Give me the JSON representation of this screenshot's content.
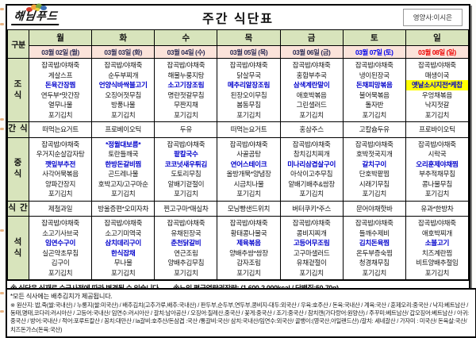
{
  "header": {
    "logo_text": "해님푸드",
    "title": "주간 식단표",
    "nutritionist": "영양사:이시은"
  },
  "colors": {
    "header_green": "#d8e4bc",
    "date_pink": "#fbe3da",
    "special_blue": "#0000cc",
    "saturday_blue": "#0000ee",
    "sunday_red": "#ee0000",
    "highlight_yellow": "#ffff00"
  },
  "table": {
    "corner_label": "구분",
    "days": [
      "월",
      "화",
      "수",
      "목",
      "금",
      "토",
      "일"
    ],
    "dates": [
      "03월 02일 (월)",
      "03월 03일 (화)",
      "03월 04일 (수)",
      "03월 05일 (목)",
      "03월 06일 (금)",
      "03월 07일 (토)",
      "03월 08일 (일)"
    ],
    "meals": [
      {
        "key": "breakfast",
        "label": "조식",
        "stacked": true,
        "cells": [
          [
            "잡곡밥/야채죽",
            "게살스프",
            {
              "text": "돈육간장찜",
              "style": "blue"
            },
            "연두부*맛간장",
            "열무나물",
            "포기김치"
          ],
          [
            "잡곡밥/야채죽",
            "순두부찌개",
            {
              "text": "언양식바싹불고기",
              "style": "blue"
            },
            "오징어젓무침",
            "방풍나물",
            "포기김치"
          ],
          [
            "잡곡밥/야채죽",
            "해물누룽지탕",
            {
              "text": "소고기장조림",
              "style": "blue"
            },
            "명란젓갈무침",
            "무짠지채",
            "포기김치"
          ],
          [
            "잡곡밥/야채죽",
            "닭살무국",
            {
              "text": "메추리알장조림",
              "style": "blue"
            },
            "된장오이무침",
            "봄동무침",
            "포기김치"
          ],
          [
            "잡곡밥/야채죽",
            "홍합부추국",
            {
              "text": "삼색계란말이",
              "style": "blue"
            },
            "애호박볶음",
            "그린샐러드",
            "포기김치"
          ],
          [
            "잡곡밥/야채죽",
            "냉이된장국",
            {
              "text": "돈채피망볶음",
              "style": "blue"
            },
            "불어묵볶음",
            "돌자반",
            "포기김치"
          ],
          [
            "잡곡밥/야채죽",
            "매생이국",
            {
              "text": "옛날소시지전*케찹",
              "style": "highlight"
            },
            "우엉채볶음",
            "낙지젓갈",
            "포기김치"
          ]
        ]
      },
      {
        "key": "snack-am",
        "label": "간 식",
        "stacked": false,
        "cells": [
          [
            "떠먹는요거트"
          ],
          [
            "프로베이오틱"
          ],
          [
            "두유"
          ],
          [
            "떠먹는요거트"
          ],
          [
            "홍삼주스"
          ],
          [
            "고칼슘두유"
          ],
          [
            "프로바이오틱"
          ]
        ]
      },
      {
        "key": "lunch",
        "label": "중식",
        "stacked": true,
        "cells": [
          [
            "잡곡밥/야채죽",
            "우거지순살감자탕",
            {
              "text": "깻잎부추전",
              "style": "blue"
            },
            "사각어묵볶음",
            "양파간장지",
            "포기김치"
          ],
          [
            {
              "text": "*정월대보름*",
              "style": "blue"
            },
            "토란들깨국",
            {
              "text": "한방돈갈비찜",
              "style": "blue"
            },
            "곤드레나물",
            "호박고지/고구마순",
            "포기김치"
          ],
          [
            "잡곡밥/야채죽",
            {
              "text": "팥칼국수",
              "style": "blue"
            },
            {
              "text": "코코넛새우튀김",
              "style": "blue"
            },
            "도토리무침",
            "알배기겉절이",
            "포기김치"
          ],
          [
            "잡곡밥/야채죽",
            "사골곰탕",
            {
              "text": "연어스테이크",
              "style": "blue"
            },
            "올방개묵*양념장",
            "시금치나물",
            "포기김치"
          ],
          [
            "잡곡밥/야채죽",
            "참치김치찌개",
            {
              "text": "미나리삼겹살구이",
              "style": "blue"
            },
            "아삭이고추무침",
            "알배기배추&쌈장",
            "포기김치"
          ],
          [
            "잡곡밥/야채죽",
            "호박젓국지개",
            {
              "text": "갈치구이",
              "style": "blue"
            },
            "단호박팥찜",
            "시래기무침",
            "포기김치"
          ],
          [
            "잡곡밥/야채죽",
            "시락국",
            {
              "text": "오리훈제야채찜",
              "style": "blue"
            },
            "부추적채무침",
            "콩나물무침",
            "포기김치"
          ]
        ]
      },
      {
        "key": "snack-pm",
        "label": "식 간",
        "stacked": false,
        "cells": [
          [
            "제철과일"
          ],
          [
            "방울증편*오미자차"
          ],
          [
            "찐고구마*매실차"
          ],
          [
            "모닝빵샌드위치"
          ],
          [
            "버터쿠키*주스"
          ],
          [
            "문어야채핫바"
          ],
          [
            "유과*한방차"
          ]
        ]
      },
      {
        "key": "dinner",
        "label": "석식",
        "stacked": true,
        "cells": [
          [
            "잡곡밥/야채죽",
            "소고기사브국",
            {
              "text": "임연수구이",
              "style": "blue"
            },
            "실곤약초무침",
            "김구이",
            "포기김치"
          ],
          [
            "잡곡밥/야채죽",
            "소고기미역국",
            {
              "text": "삼치데리구이",
              "style": "blue"
            },
            {
              "text": "한식잡채",
              "style": "blue"
            },
            "무나물",
            "포기김치"
          ],
          [
            "잡곡밥/야채죽",
            "유채된장국",
            {
              "text": "춘천닭갈비",
              "style": "blue"
            },
            "연근조림",
            "양배추김무침",
            "포기김치"
          ],
          [
            "잡곡밥/야채죽",
            "황태콩나물국",
            {
              "text": "제육볶음",
              "style": "blue"
            },
            "양배추쌈*쌈장",
            "감자조림",
            "포기김치"
          ],
          [
            "잡곡밥/야채죽",
            "콩비지찌개",
            {
              "text": "고등어무조림",
              "style": "blue"
            },
            "고구마샐러드",
            "유채겉절이",
            "포기김치"
          ],
          [
            "잡곡밥/야채죽",
            "들깨수제비",
            {
              "text": "김치돈육찜",
              "style": "blue"
            },
            "온두부증숙찜",
            "청경채무침",
            "포기김치"
          ],
          [
            "잡곡밥/야채죽",
            "애호박찌개",
            {
              "text": "소불고기",
              "style": "blue"
            },
            "치즈계란찜",
            "비트양배추절임",
            "포기김치"
          ]
        ]
      }
    ]
  },
  "note": {
    "change_notice": "※ 식단은 식재료 수급사정에 따라 변경될 수 있습니다.",
    "calorie_notice": "※노인 평균열량권장량: (1,600-2,000kcal / 단백질:50-70g)"
  },
  "footer": {
    "kimchi_note": "*모든 식사에는 배추김치가 제공됩니다.",
    "origin_text": "※ 원산지: 밥,죽(쌀:국내산) / 누룽지(쌀:미국산) / 배추김치(고추가루,배추:국내산) / 판두부,순두부,연두부,콩비지-대두:외국산 / 우육:호주산 / 돈육:국내산 / 계육:국산 / 훈제오리:중국산 / 낙지:베트남산 / 동태,명태,코다리:러시아산 / 고등어:국내산/ 임연수:러시아산 / 갈치:남아공산 / 오징어:칠레산,중국산 / 꽃게:중국산 / 조기:중국산 / 참치캔(가다랑어:원양산) / 주꾸미:베트남산/ 갑오징어:베트남산 / 아귀:중국산 / 방어:국내산 / 적어:포루트칼산 / 꽁치:대만산 / la갈비:호주산/돈삼겹 :국산 /통갈비:국산/ 삼치:국내산/임연수:외국산/ 골뱅이:(영국산,아일랜드산) /갈치: 세네갈산 / 가자미 : 미국산/ 돈육살:국산/ 치즈돈가스(돈육:국산)"
  }
}
